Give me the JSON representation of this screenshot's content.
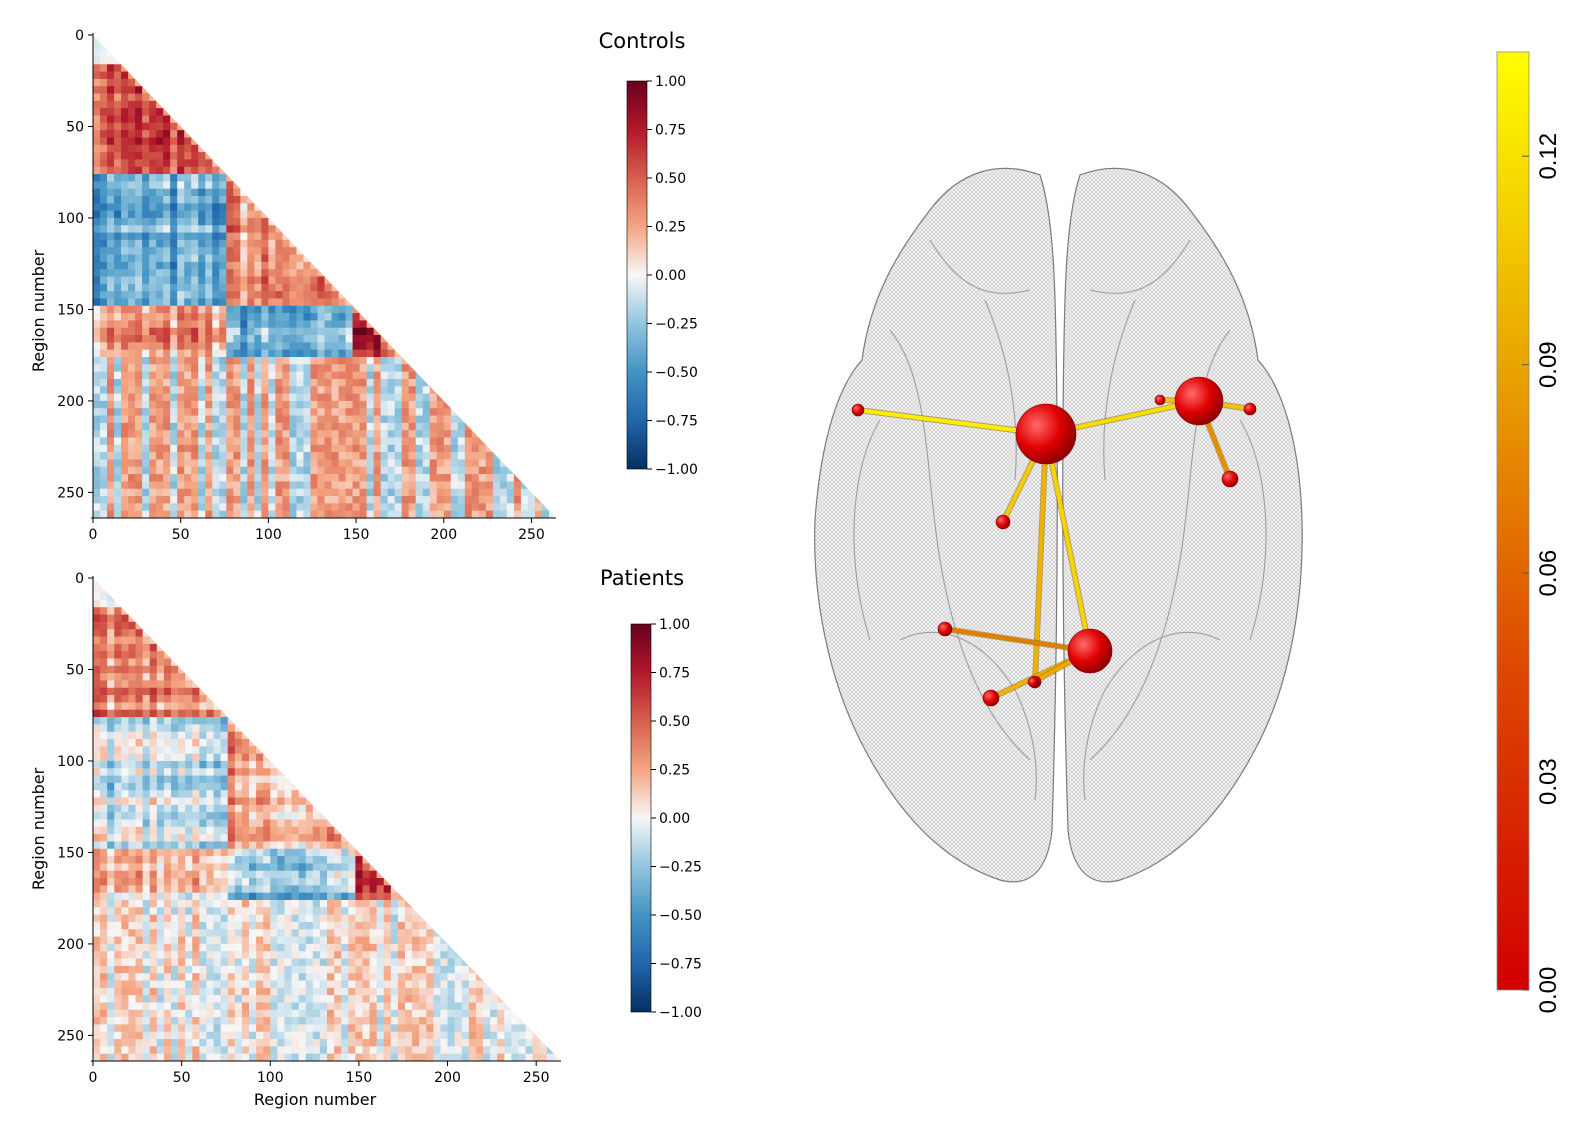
{
  "chart_data": [
    {
      "type": "heatmap",
      "title": "Controls",
      "xlabel": "",
      "ylabel": "Region number",
      "xlim": [
        0,
        264
      ],
      "ylim": [
        264,
        0
      ],
      "x_ticks": [
        "0",
        "50",
        "100",
        "150",
        "200",
        "250"
      ],
      "y_ticks": [
        "0",
        "50",
        "100",
        "150",
        "200",
        "250"
      ],
      "shape": "lower-triangle",
      "n_regions": 264,
      "colormap": "RdBu_r",
      "colorbar": {
        "range": [
          -1.0,
          1.0
        ],
        "ticks": [
          "1.00",
          "0.75",
          "0.50",
          "0.25",
          "0.00",
          "−0.25",
          "−0.50",
          "−0.75",
          "−1.00"
        ]
      },
      "blocks": [
        {
          "rows": [
            13,
            73
          ],
          "cols": [
            0,
            73
          ],
          "value": 0.55
        },
        {
          "rows": [
            73,
            145
          ],
          "cols": [
            0,
            73
          ],
          "value": -0.4
        },
        {
          "rows": [
            73,
            145
          ],
          "cols": [
            73,
            145
          ],
          "value": 0.35
        },
        {
          "rows": [
            145,
            173
          ],
          "cols": [
            0,
            73
          ],
          "value": 0.3
        },
        {
          "rows": [
            145,
            173
          ],
          "cols": [
            73,
            145
          ],
          "value": -0.4
        },
        {
          "rows": [
            145,
            173
          ],
          "cols": [
            145,
            173
          ],
          "value": 0.75
        },
        {
          "rows": [
            173,
            264
          ],
          "cols": [
            0,
            264
          ],
          "value": 0.2
        }
      ]
    },
    {
      "type": "heatmap",
      "title": "Patients",
      "xlabel": "Region number",
      "ylabel": "Region number",
      "xlim": [
        0,
        264
      ],
      "ylim": [
        264,
        0
      ],
      "x_ticks": [
        "0",
        "50",
        "100",
        "150",
        "200",
        "250"
      ],
      "y_ticks": [
        "0",
        "50",
        "100",
        "150",
        "200",
        "250"
      ],
      "shape": "lower-triangle",
      "n_regions": 264,
      "colormap": "RdBu_r",
      "colorbar": {
        "range": [
          -1.0,
          1.0
        ],
        "ticks": [
          "1.00",
          "0.75",
          "0.50",
          "0.25",
          "0.00",
          "−0.25",
          "−0.50",
          "−0.75",
          "−1.00"
        ]
      },
      "blocks": [
        {
          "rows": [
            13,
            73
          ],
          "cols": [
            0,
            73
          ],
          "value": 0.35
        },
        {
          "rows": [
            73,
            145
          ],
          "cols": [
            0,
            73
          ],
          "value": -0.15
        },
        {
          "rows": [
            73,
            145
          ],
          "cols": [
            73,
            145
          ],
          "value": 0.25
        },
        {
          "rows": [
            145,
            173
          ],
          "cols": [
            0,
            73
          ],
          "value": 0.1
        },
        {
          "rows": [
            145,
            173
          ],
          "cols": [
            73,
            145
          ],
          "value": -0.25
        },
        {
          "rows": [
            145,
            173
          ],
          "cols": [
            145,
            173
          ],
          "value": 0.55
        },
        {
          "rows": [
            173,
            264
          ],
          "cols": [
            0,
            264
          ],
          "value": 0.1
        }
      ]
    },
    {
      "type": "network",
      "view": "brain-axial",
      "node_color": "#e00000",
      "edge_colormap": "red-orange-yellow",
      "colorbar": {
        "range": [
          0.0,
          0.135
        ],
        "ticks": [
          "0.12",
          "0.09",
          "0.06",
          "0.03",
          "0.00"
        ]
      },
      "edges": [
        {
          "from": "A",
          "to": "B",
          "value": 0.125
        },
        {
          "from": "B",
          "to": "C",
          "value": 0.115
        },
        {
          "from": "B",
          "to": "D",
          "value": 0.11
        },
        {
          "from": "C",
          "to": "F",
          "value": 0.07
        },
        {
          "from": "C",
          "to": "E",
          "value": 0.1
        },
        {
          "from": "B",
          "to": "G",
          "value": 0.105
        },
        {
          "from": "B",
          "to": "H",
          "value": 0.09
        },
        {
          "from": "D",
          "to": "I",
          "value": 0.06
        },
        {
          "from": "D",
          "to": "J",
          "value": 0.09
        },
        {
          "from": "D",
          "to": "K",
          "value": 0.085
        },
        {
          "from": "C",
          "to": "L",
          "value": 0.1
        }
      ],
      "nodes": [
        "A",
        "B",
        "C",
        "D",
        "E",
        "F",
        "G",
        "H",
        "I",
        "J",
        "K",
        "L"
      ]
    }
  ]
}
